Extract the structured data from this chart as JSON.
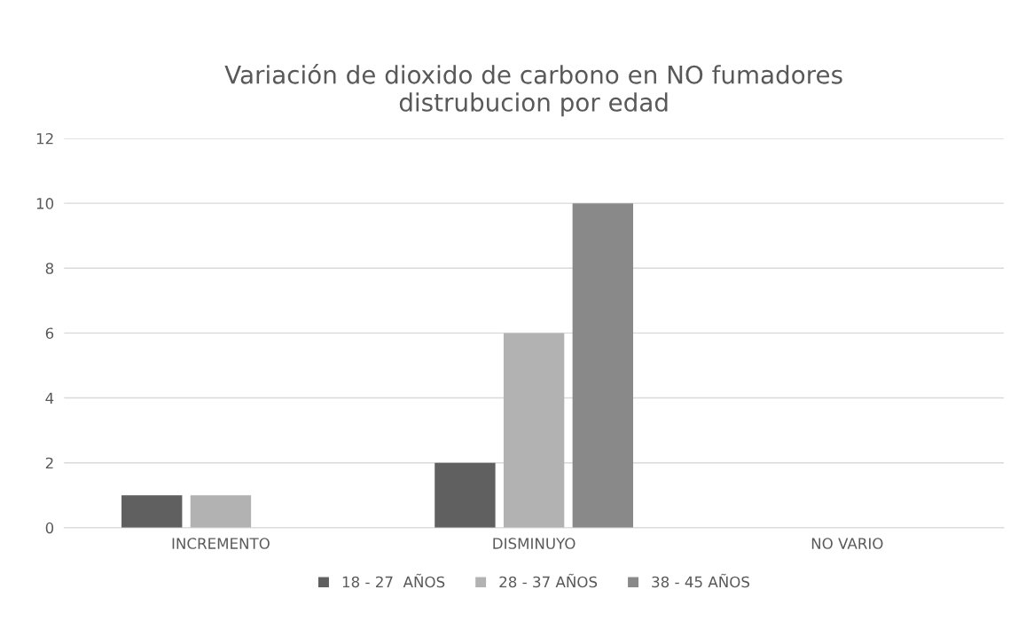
{
  "chart_data": {
    "type": "bar",
    "title": "Variación de dioxido de carbono en NO fumadores\ndistrubucion por edad",
    "categories": [
      "INCREMENTO",
      "DISMINUYO",
      "NO VARIO"
    ],
    "series": [
      {
        "name": "18 - 27  AÑOS",
        "color": "#606060",
        "values": [
          1,
          2,
          0
        ]
      },
      {
        "name": "28 - 37 AÑOS",
        "color": "#b2b2b2",
        "values": [
          1,
          6,
          0
        ]
      },
      {
        "name": "38 - 45 AÑOS",
        "color": "#898989",
        "values": [
          0,
          10,
          0
        ]
      }
    ],
    "ylim": [
      0,
      12
    ],
    "yticks": [
      0,
      2,
      4,
      6,
      8,
      10,
      12
    ],
    "grid": "y",
    "legend": "bottom"
  }
}
